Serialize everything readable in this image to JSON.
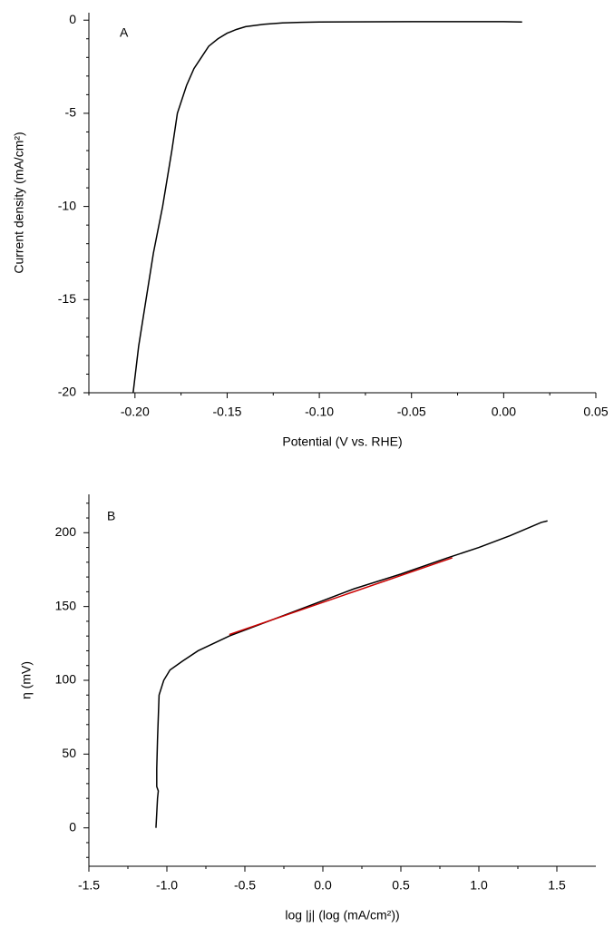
{
  "chart_data": [
    {
      "type": "line",
      "label": "A",
      "xlabel": "Potential (V vs. RHE)",
      "ylabel": "Current density (mA/cm²)",
      "xlim": [
        -0.225,
        0.05
      ],
      "ylim": [
        -20,
        0.4
      ],
      "xticks": [
        {
          "value": -0.2,
          "label": "-0.20"
        },
        -0.15,
        {
          "value": -0.1,
          "label": "-0.10"
        },
        -0.05,
        {
          "value": 0,
          "label": "0.00"
        },
        0.05
      ],
      "yticks": [
        0,
        -5,
        -10,
        -15,
        -20
      ],
      "xminorticks": [
        -0.225,
        -0.175,
        -0.125,
        -0.075,
        -0.025,
        0.025
      ],
      "yminorticks": [
        -1,
        -2,
        -3,
        -4,
        -6,
        -7,
        -8,
        -9,
        -11,
        -12,
        -13,
        -14,
        -16,
        -17,
        -18,
        -19
      ],
      "series": [
        {
          "color": "#000000",
          "x": [
            -0.201,
            -0.198,
            -0.194,
            -0.19,
            -0.185,
            -0.18,
            -0.177,
            -0.172,
            -0.168,
            -0.164,
            -0.16,
            -0.155,
            -0.15,
            -0.145,
            -0.14,
            -0.13,
            -0.12,
            -0.11,
            -0.1,
            -0.05,
            0.0,
            0.01
          ],
          "values": [
            -20,
            -17.5,
            -15,
            -12.5,
            -10,
            -7,
            -5,
            -3.5,
            -2.6,
            -2,
            -1.4,
            -1,
            -0.7,
            -0.5,
            -0.35,
            -0.22,
            -0.15,
            -0.12,
            -0.1,
            -0.08,
            -0.08,
            -0.1
          ]
        }
      ]
    },
    {
      "type": "line",
      "label": "B",
      "xlabel": "log |j| (log (mA/cm²))",
      "ylabel": "η (mV)",
      "xlim": [
        -1.5,
        1.75
      ],
      "ylim": [
        -26,
        226
      ],
      "xticks": [
        -1.5,
        {
          "value": -1,
          "label": "-1.0"
        },
        -0.5,
        {
          "value": 0,
          "label": "0.0"
        },
        0.5,
        {
          "value": 1,
          "label": "1.0"
        },
        1.5
      ],
      "yticks": [
        0,
        50,
        100,
        150,
        200
      ],
      "xminorticks": [
        -1.25,
        -0.75,
        -0.25,
        0.25,
        0.75,
        1.25
      ],
      "yminorticks": [
        -20,
        -10,
        10,
        20,
        30,
        40,
        60,
        70,
        80,
        90,
        110,
        120,
        130,
        140,
        160,
        170,
        180,
        190,
        210,
        220
      ],
      "series": [
        {
          "color": "#000000",
          "x": [
            -1.07,
            -1.065,
            -1.06,
            -1.055,
            -1.065,
            -1.065,
            -1.06,
            -1.055,
            -1.05,
            -1.02,
            -0.98,
            -0.9,
            -0.8,
            -0.6,
            -0.4,
            -0.2,
            0,
            0.2,
            0.5,
            0.8,
            1.0,
            1.2,
            1.4,
            1.44
          ],
          "values": [
            0,
            10,
            20,
            25,
            28,
            40,
            60,
            75,
            90,
            100,
            107,
            113,
            120,
            130,
            138,
            146,
            154,
            162,
            172,
            183,
            190,
            198,
            207,
            208
          ]
        },
        {
          "color": "#cc0000",
          "x": [
            -0.6,
            0.83
          ],
          "values": [
            131,
            183
          ]
        }
      ]
    }
  ]
}
